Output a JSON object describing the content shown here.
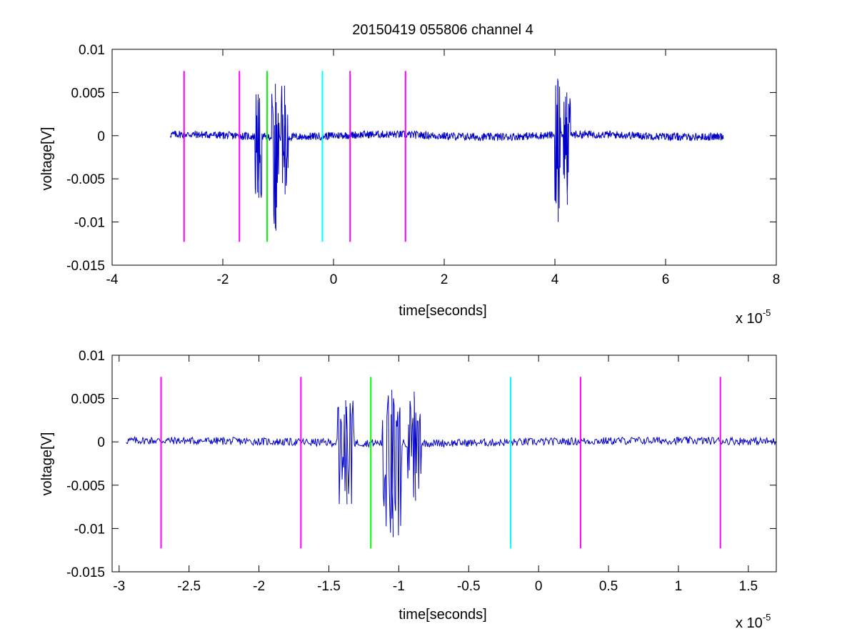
{
  "title": "20150419 055806 channel 4",
  "colors": {
    "signal": "#0000c8",
    "marker_magenta": "#ff00ff",
    "marker_green": "#00ff00",
    "marker_cyan": "#00ffff",
    "axes": "#000000"
  },
  "chart_data": [
    {
      "type": "line",
      "title": "20150419 055806 channel 4",
      "xlabel": "time[seconds]",
      "ylabel": "voltage[V]",
      "x_scale_label": "x 10",
      "x_scale_exponent": "-5",
      "xlim": [
        -4,
        8
      ],
      "ylim": [
        -0.015,
        0.01
      ],
      "x_ticks": [
        -4,
        -2,
        0,
        2,
        4,
        6,
        8
      ],
      "x_tick_labels": [
        "-4",
        "-2",
        "0",
        "2",
        "4",
        "6",
        "8"
      ],
      "y_ticks": [
        0.01,
        0.005,
        0,
        -0.005,
        -0.01,
        -0.015
      ],
      "y_tick_labels": [
        "0.01",
        "0.005",
        "0",
        "-0.005",
        "-0.01",
        "-0.015"
      ],
      "grid": false,
      "signal_range": [
        -2.95,
        7.05
      ],
      "bursts": [
        {
          "t": [
            -1.42,
            -1.3
          ],
          "min": -0.0072,
          "max": 0.0048
        },
        {
          "t": [
            -1.12,
            -0.98
          ],
          "min": -0.011,
          "max": 0.006
        },
        {
          "t": [
            -0.95,
            -0.82
          ],
          "min": -0.0068,
          "max": 0.0058
        },
        {
          "t": [
            4.0,
            4.1
          ],
          "min": -0.01,
          "max": 0.0066
        },
        {
          "t": [
            4.15,
            4.28
          ],
          "min": -0.008,
          "max": 0.005
        }
      ],
      "markers": [
        {
          "x": -2.7,
          "color": "magenta",
          "y_range": [
            -0.0123,
            0.0075
          ]
        },
        {
          "x": -1.7,
          "color": "magenta",
          "y_range": [
            -0.0123,
            0.0075
          ]
        },
        {
          "x": -1.2,
          "color": "green",
          "y_range": [
            -0.0123,
            0.0075
          ]
        },
        {
          "x": -0.2,
          "color": "cyan",
          "y_range": [
            -0.0123,
            0.0075
          ]
        },
        {
          "x": 0.3,
          "color": "magenta",
          "y_range": [
            -0.0123,
            0.0075
          ]
        },
        {
          "x": 1.3,
          "color": "magenta",
          "y_range": [
            -0.0123,
            0.0075
          ]
        }
      ]
    },
    {
      "type": "line",
      "xlabel": "time[seconds]",
      "ylabel": "voltage[V]",
      "x_scale_label": "x 10",
      "x_scale_exponent": "-5",
      "xlim": [
        -3.05,
        1.7
      ],
      "ylim": [
        -0.015,
        0.01
      ],
      "x_ticks": [
        -3,
        -2.5,
        -2,
        -1.5,
        -1,
        -0.5,
        0,
        0.5,
        1,
        1.5
      ],
      "x_tick_labels": [
        "-3",
        "-2.5",
        "-2",
        "-1.5",
        "-1",
        "-0.5",
        "0",
        "0.5",
        "1",
        "1.5"
      ],
      "y_ticks": [
        0.01,
        0.005,
        0,
        -0.005,
        -0.01,
        -0.015
      ],
      "y_tick_labels": [
        "0.01",
        "0.005",
        "0",
        "-0.005",
        "-0.01",
        "-0.015"
      ],
      "grid": false,
      "signal_range": [
        -2.95,
        1.7
      ],
      "bursts": [
        {
          "t": [
            -1.44,
            -1.32
          ],
          "min": -0.0072,
          "max": 0.0048
        },
        {
          "t": [
            -1.12,
            -0.98
          ],
          "min": -0.011,
          "max": 0.006
        },
        {
          "t": [
            -0.94,
            -0.84
          ],
          "min": -0.0068,
          "max": 0.0058
        }
      ],
      "markers": [
        {
          "x": -2.7,
          "color": "magenta",
          "y_range": [
            -0.0123,
            0.0075
          ]
        },
        {
          "x": -1.7,
          "color": "magenta",
          "y_range": [
            -0.0123,
            0.0075
          ]
        },
        {
          "x": -1.2,
          "color": "green",
          "y_range": [
            -0.0123,
            0.0075
          ]
        },
        {
          "x": -0.2,
          "color": "cyan",
          "y_range": [
            -0.0123,
            0.0075
          ]
        },
        {
          "x": 0.3,
          "color": "magenta",
          "y_range": [
            -0.0123,
            0.0075
          ]
        },
        {
          "x": 1.3,
          "color": "magenta",
          "y_range": [
            -0.0123,
            0.0075
          ]
        }
      ]
    }
  ]
}
